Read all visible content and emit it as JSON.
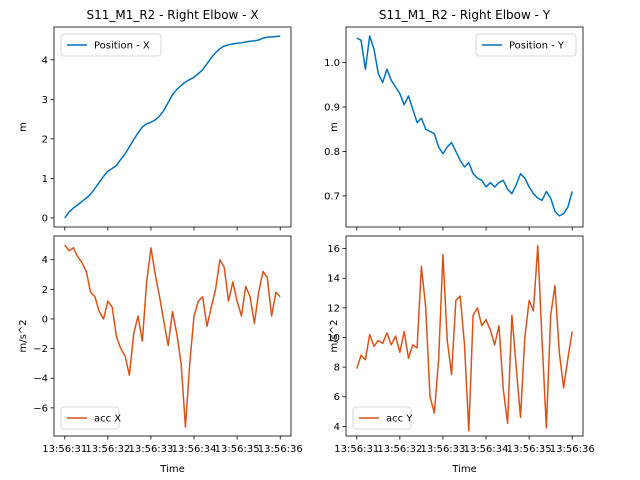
{
  "colors": {
    "position": "#0072bd",
    "acc": "#d95319"
  },
  "chart_data": [
    {
      "type": "line",
      "title": "S11_M1_R2 - Right Elbow - X",
      "xlabel": "",
      "ylabel": "m",
      "ylim": [
        -0.23,
        4.83
      ],
      "yticks": [
        "0",
        "1",
        "2",
        "3",
        "4"
      ],
      "ytick_values": [
        0,
        1,
        2,
        3,
        4
      ],
      "xlim": [
        -1.25,
        26.25
      ],
      "xticks": [
        "",
        "",
        "",
        "",
        "",
        ""
      ],
      "xtick_values": [
        0,
        5,
        10,
        15,
        20,
        25
      ],
      "legend": "upper left",
      "series": [
        {
          "name": "Position - X",
          "color": "#0072bd",
          "x": [
            0,
            0.5,
            1,
            1.5,
            2,
            2.5,
            3,
            3.5,
            4,
            4.5,
            5,
            5.5,
            6,
            6.5,
            7,
            7.5,
            8,
            8.5,
            9,
            9.5,
            10,
            10.5,
            11,
            11.5,
            12,
            12.5,
            13,
            13.5,
            14,
            14.5,
            15,
            15.5,
            16,
            16.5,
            17,
            17.5,
            18,
            18.5,
            19,
            19.5,
            20,
            20.5,
            21,
            21.5,
            22,
            22.5,
            23,
            23.5,
            24,
            24.5,
            25
          ],
          "y": [
            0.0,
            0.15,
            0.25,
            0.33,
            0.42,
            0.5,
            0.6,
            0.75,
            0.9,
            1.05,
            1.18,
            1.25,
            1.33,
            1.48,
            1.62,
            1.8,
            1.98,
            2.15,
            2.3,
            2.38,
            2.42,
            2.48,
            2.58,
            2.72,
            2.92,
            3.12,
            3.25,
            3.35,
            3.44,
            3.5,
            3.56,
            3.65,
            3.75,
            3.9,
            4.05,
            4.18,
            4.28,
            4.35,
            4.38,
            4.4,
            4.42,
            4.43,
            4.45,
            4.47,
            4.48,
            4.5,
            4.55,
            4.57,
            4.58,
            4.59,
            4.6
          ]
        }
      ]
    },
    {
      "type": "line",
      "title": "S11_M1_R2 - Right Elbow - Y",
      "xlabel": "",
      "ylabel": "m",
      "ylim": [
        0.63,
        1.08
      ],
      "yticks": [
        "0.7",
        "0.8",
        "0.9",
        "1.0"
      ],
      "ytick_values": [
        0.7,
        0.8,
        0.9,
        1.0
      ],
      "xlim": [
        -1.25,
        26.25
      ],
      "xticks": [
        "",
        "",
        "",
        "",
        "",
        ""
      ],
      "xtick_values": [
        0,
        5,
        10,
        15,
        20,
        25
      ],
      "legend": "upper right",
      "series": [
        {
          "name": "Position - Y",
          "color": "#0072bd",
          "x": [
            0,
            0.5,
            1,
            1.5,
            2,
            2.5,
            3,
            3.5,
            4,
            4.5,
            5,
            5.5,
            6,
            6.5,
            7,
            7.5,
            8,
            8.5,
            9,
            9.5,
            10,
            10.5,
            11,
            11.5,
            12,
            12.5,
            13,
            13.5,
            14,
            14.5,
            15,
            15.5,
            16,
            16.5,
            17,
            17.5,
            18,
            18.5,
            19,
            19.5,
            20,
            20.5,
            21,
            21.5,
            22,
            22.5,
            23,
            23.5,
            24,
            24.5,
            25
          ],
          "y": [
            1.055,
            1.05,
            0.985,
            1.06,
            1.03,
            0.975,
            0.955,
            0.985,
            0.96,
            0.945,
            0.93,
            0.905,
            0.925,
            0.895,
            0.865,
            0.875,
            0.85,
            0.845,
            0.84,
            0.81,
            0.795,
            0.81,
            0.82,
            0.8,
            0.78,
            0.765,
            0.775,
            0.75,
            0.74,
            0.735,
            0.72,
            0.73,
            0.72,
            0.73,
            0.735,
            0.715,
            0.705,
            0.725,
            0.75,
            0.74,
            0.72,
            0.705,
            0.695,
            0.69,
            0.71,
            0.695,
            0.665,
            0.655,
            0.66,
            0.675,
            0.71
          ]
        }
      ]
    },
    {
      "type": "line",
      "title": "",
      "xlabel": "Time",
      "ylabel": "m/s^2",
      "ylim": [
        -7.9,
        5.6
      ],
      "yticks": [
        "−6",
        "−4",
        "−2",
        "0",
        "2",
        "4"
      ],
      "ytick_values": [
        -6,
        -4,
        -2,
        0,
        2,
        4
      ],
      "xlim": [
        -1.25,
        26.25
      ],
      "xticks": [
        "13:56:31",
        "13:56:32",
        "13:56:33",
        "13:56:34",
        "13:56:35",
        "13:56:36"
      ],
      "xtick_values": [
        0,
        5,
        10,
        15,
        20,
        25
      ],
      "legend": "lower left",
      "series": [
        {
          "name": "acc X",
          "color": "#d95319",
          "x": [
            0,
            0.5,
            1,
            1.5,
            2,
            2.5,
            3,
            3.5,
            4,
            4.5,
            5,
            5.5,
            6,
            6.5,
            7,
            7.5,
            8,
            8.5,
            9,
            9.5,
            10,
            10.5,
            11,
            11.5,
            12,
            12.5,
            13,
            13.5,
            14,
            14.5,
            15,
            15.5,
            16,
            16.5,
            17,
            17.5,
            18,
            18.5,
            19,
            19.5,
            20,
            20.5,
            21,
            21.5,
            22,
            22.5,
            23,
            23.5,
            24,
            24.5,
            25
          ],
          "y": [
            5.0,
            4.6,
            4.8,
            4.2,
            3.8,
            3.2,
            1.8,
            1.5,
            0.5,
            0.0,
            1.2,
            0.8,
            -1.2,
            -2.0,
            -2.5,
            -3.8,
            -1.0,
            0.2,
            -1.5,
            2.5,
            4.8,
            3.0,
            1.5,
            -0.2,
            -1.8,
            0.5,
            -1.0,
            -3.0,
            -7.3,
            -3.0,
            0.2,
            1.2,
            1.5,
            -0.5,
            0.8,
            2.0,
            4.0,
            3.5,
            1.2,
            2.5,
            1.2,
            0.2,
            2.2,
            1.5,
            -0.3,
            1.8,
            3.2,
            2.8,
            0.2,
            1.8,
            1.5
          ]
        }
      ]
    },
    {
      "type": "line",
      "title": "",
      "xlabel": "Time",
      "ylabel": "m/s^2",
      "ylim": [
        3.35,
        16.85
      ],
      "yticks": [
        "4",
        "6",
        "8",
        "10",
        "12",
        "14",
        "16"
      ],
      "ytick_values": [
        4,
        6,
        8,
        10,
        12,
        14,
        16
      ],
      "xlim": [
        -1.25,
        26.25
      ],
      "xticks": [
        "13:56:31",
        "13:56:32",
        "13:56:33",
        "13:56:34",
        "13:56:35",
        "13:56:36"
      ],
      "xtick_values": [
        0,
        5,
        10,
        15,
        20,
        25
      ],
      "legend": "lower left",
      "series": [
        {
          "name": "acc Y",
          "color": "#d95319",
          "x": [
            0,
            0.5,
            1,
            1.5,
            2,
            2.5,
            3,
            3.5,
            4,
            4.5,
            5,
            5.5,
            6,
            6.5,
            7,
            7.5,
            8,
            8.5,
            9,
            9.5,
            10,
            10.5,
            11,
            11.5,
            12,
            12.5,
            13,
            13.5,
            14,
            14.5,
            15,
            15.5,
            16,
            16.5,
            17,
            17.5,
            18,
            18.5,
            19,
            19.5,
            20,
            20.5,
            21,
            21.5,
            22,
            22.5,
            23,
            23.5,
            24,
            24.5,
            25
          ],
          "y": [
            7.9,
            8.8,
            8.5,
            10.2,
            9.4,
            9.8,
            9.6,
            10.3,
            9.5,
            10.1,
            9.0,
            10.4,
            8.6,
            9.5,
            9.3,
            14.8,
            12.0,
            6.0,
            4.9,
            8.5,
            15.6,
            9.8,
            7.5,
            12.5,
            12.8,
            9.5,
            3.7,
            11.5,
            12.0,
            10.8,
            11.2,
            10.5,
            9.5,
            10.8,
            6.5,
            4.2,
            11.5,
            8.0,
            4.6,
            10.0,
            12.5,
            11.8,
            16.2,
            9.8,
            3.9,
            11.5,
            13.5,
            9.0,
            6.6,
            8.6,
            10.4
          ]
        }
      ]
    }
  ]
}
